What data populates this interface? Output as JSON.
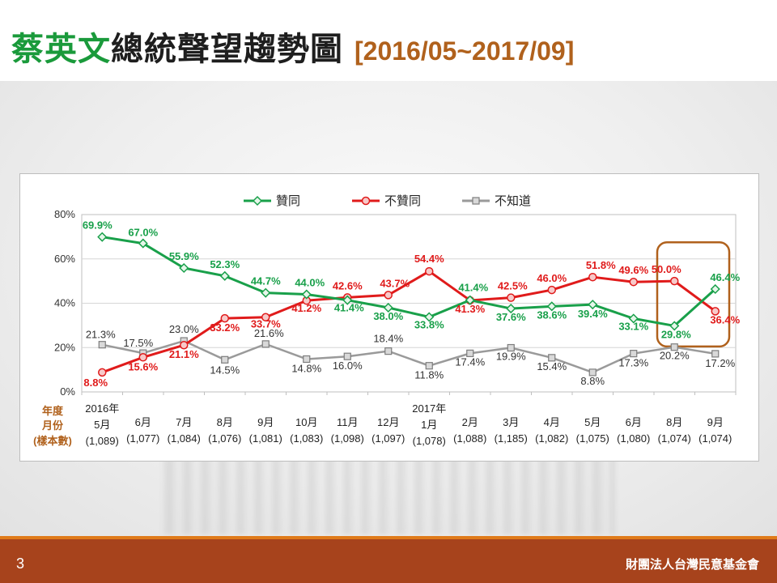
{
  "title": {
    "name": "蔡英文",
    "rest": "總統聲望趨勢圖",
    "range": "[2016/05~2017/09]"
  },
  "footer": {
    "page_number": "3",
    "organization": "財團法人台灣民意基金會"
  },
  "colors": {
    "approve": "#19a04a",
    "disapprove": "#e01b1b",
    "unknown": "#9a9a9a",
    "highlight_box": "#b0611c",
    "footer": "#a7431c"
  },
  "chart_data": {
    "type": "line",
    "legend": {
      "position": "top",
      "entries": [
        "贊同",
        "不贊同",
        "不知道"
      ]
    },
    "ylim": [
      0,
      80
    ],
    "yticks": [
      "0%",
      "20%",
      "40%",
      "60%",
      "80%"
    ],
    "grid": true,
    "row_labels": [
      "年度",
      "月份",
      "(樣本數)"
    ],
    "years": [
      {
        "index": 0,
        "label": "2016年"
      },
      {
        "index": 8,
        "label": "2017年"
      }
    ],
    "categories": [
      "5月",
      "6月",
      "7月",
      "8月",
      "9月",
      "10月",
      "11月",
      "12月",
      "1月",
      "2月",
      "3月",
      "4月",
      "5月",
      "6月",
      "8月",
      "9月"
    ],
    "sample_sizes": [
      "(1,089)",
      "(1,077)",
      "(1,084)",
      "(1,076)",
      "(1,081)",
      "(1,083)",
      "(1,098)",
      "(1,097)",
      "(1,078)",
      "(1,088)",
      "(1,185)",
      "(1,082)",
      "(1,075)",
      "(1,080)",
      "(1,074)",
      "(1,074)"
    ],
    "series": [
      {
        "name": "贊同",
        "values": [
          69.9,
          67.0,
          55.9,
          52.3,
          44.7,
          44.0,
          41.4,
          38.0,
          33.8,
          41.4,
          37.6,
          38.6,
          39.4,
          33.1,
          29.8,
          46.4
        ]
      },
      {
        "name": "不贊同",
        "values": [
          8.8,
          15.6,
          21.1,
          33.2,
          33.7,
          41.2,
          42.6,
          43.7,
          54.4,
          41.3,
          42.5,
          46.0,
          51.8,
          49.6,
          50.0,
          36.4
        ]
      },
      {
        "name": "不知道",
        "values": [
          21.3,
          17.5,
          23.0,
          14.5,
          21.6,
          14.8,
          16.0,
          18.4,
          11.8,
          17.4,
          19.9,
          15.4,
          8.8,
          17.3,
          20.2,
          17.2
        ]
      }
    ],
    "highlight": {
      "from_index": 14,
      "to_index": 15
    }
  }
}
